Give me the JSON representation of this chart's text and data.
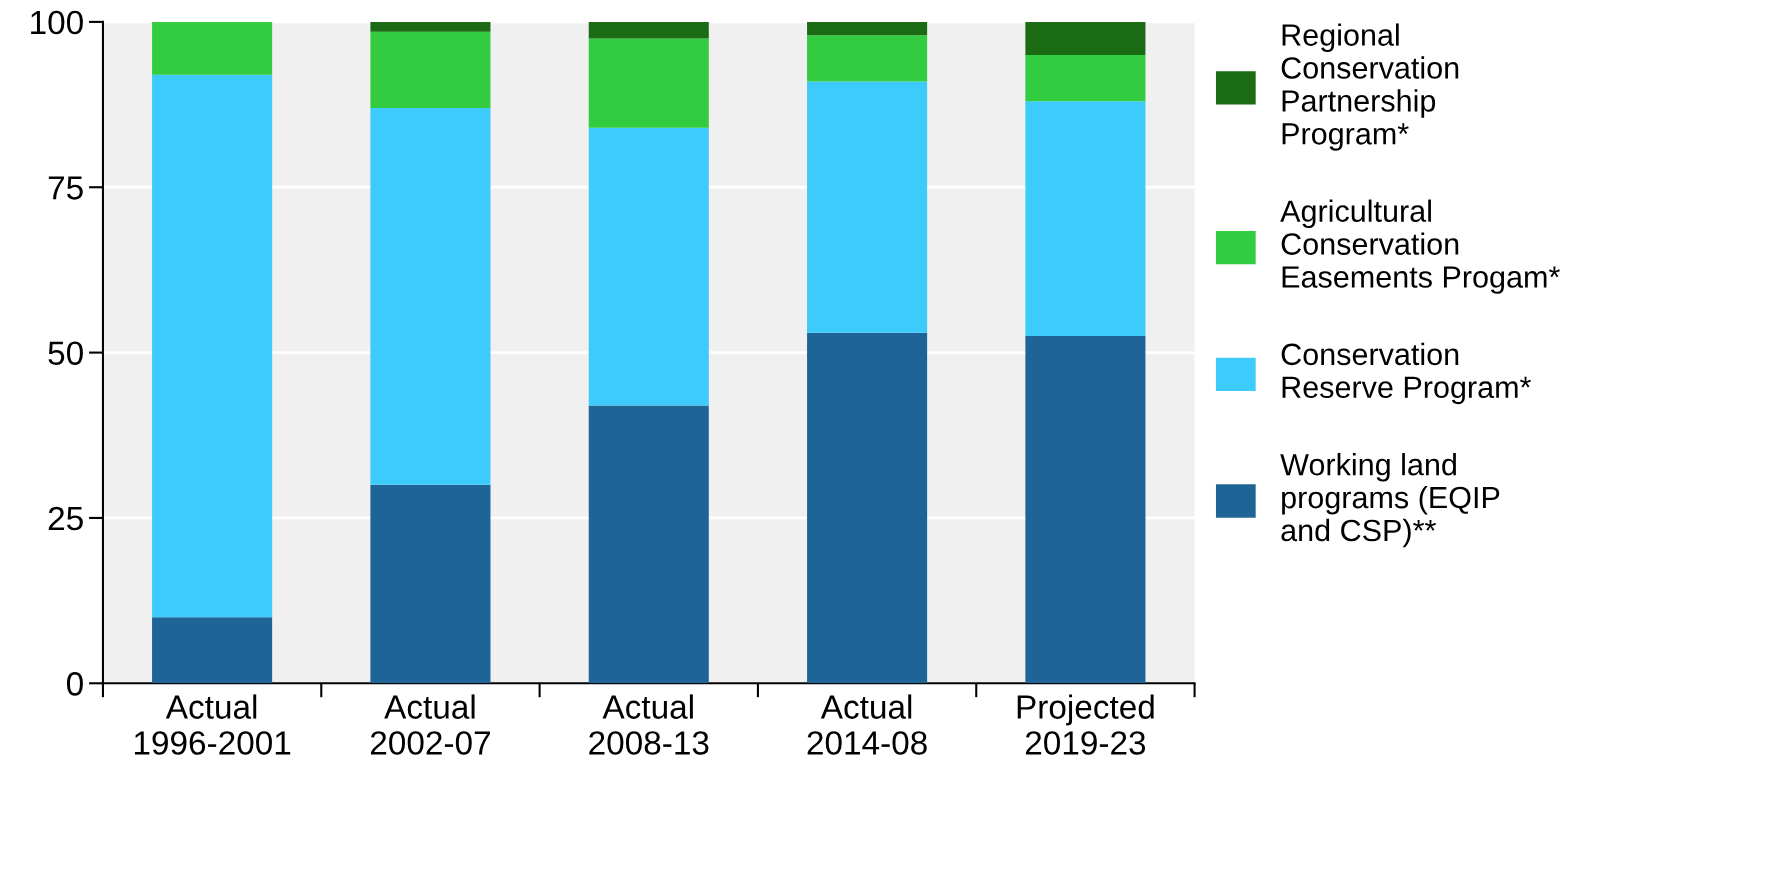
{
  "chart_data": {
    "type": "bar",
    "stacked": true,
    "categories": [
      "Actual\n1996-2001",
      "Actual\n2002-07",
      "Actual\n2008-13",
      "Actual\n2014-08",
      "Projected\n2019-23"
    ],
    "series": [
      {
        "name": "Working land\nprograms (EQIP\nand CSP)**",
        "color": "#1f6496",
        "values": [
          10,
          30,
          42,
          53,
          52.5
        ]
      },
      {
        "name": "Conservation\nReserve Program*",
        "color": "#3ccbfa",
        "values": [
          82,
          57,
          42,
          38,
          35.5
        ]
      },
      {
        "name": "Agricultural\nConservation\nEasements Progam*",
        "color": "#33cc40",
        "values": [
          8,
          11.5,
          13.5,
          7,
          7
        ]
      },
      {
        "name": "Regional\nConservation\nPartnership\nProgram*",
        "color": "#1a6b14",
        "values": [
          0,
          1.5,
          2.5,
          2,
          5
        ]
      }
    ],
    "ylim": [
      0,
      100
    ],
    "yticks": [
      0,
      25,
      50,
      75,
      100
    ],
    "grid": "y",
    "legend": "right"
  }
}
